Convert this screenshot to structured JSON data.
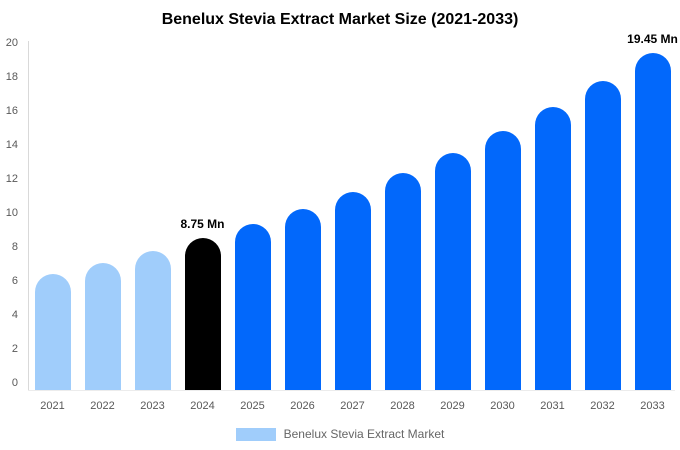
{
  "chart_data": {
    "type": "bar",
    "title": "Benelux Stevia Extract Market Size (2021-2033)",
    "categories": [
      "2021",
      "2022",
      "2023",
      "2024",
      "2025",
      "2026",
      "2027",
      "2028",
      "2029",
      "2030",
      "2031",
      "2032",
      "2033"
    ],
    "values": [
      6.7,
      7.33,
      8.01,
      8.75,
      9.56,
      10.45,
      11.43,
      12.49,
      13.65,
      14.92,
      16.31,
      17.8,
      19.45
    ],
    "bar_colors": [
      "#a0cdfb",
      "#a0cdfb",
      "#a0cdfb",
      "#000000",
      "#0268fb",
      "#0268fb",
      "#0268fb",
      "#0268fb",
      "#0268fb",
      "#0268fb",
      "#0268fb",
      "#0268fb",
      "#0268fb"
    ],
    "annotations": [
      {
        "category": "2024",
        "text": "8.75 Mn"
      },
      {
        "category": "2033",
        "text": "19.45 Mn"
      }
    ],
    "xlabel": "",
    "ylabel": "",
    "ylim": [
      0,
      20
    ],
    "yticks": [
      0,
      2,
      4,
      6,
      8,
      10,
      12,
      14,
      16,
      18,
      20
    ],
    "grid": false,
    "legend": {
      "position": "bottom",
      "label": "Benelux Stevia Extract Market",
      "swatch_color": "#a0cdfb"
    }
  },
  "colors": {
    "historical_bar": "#a0cdfb",
    "current_year_bar": "#000000",
    "forecast_bar": "#0268fb",
    "axis_line": "#d9d9d9",
    "baseline": "#ececec",
    "tick_text": "#595959",
    "legend_text": "#666666",
    "title_text": "#000000"
  }
}
